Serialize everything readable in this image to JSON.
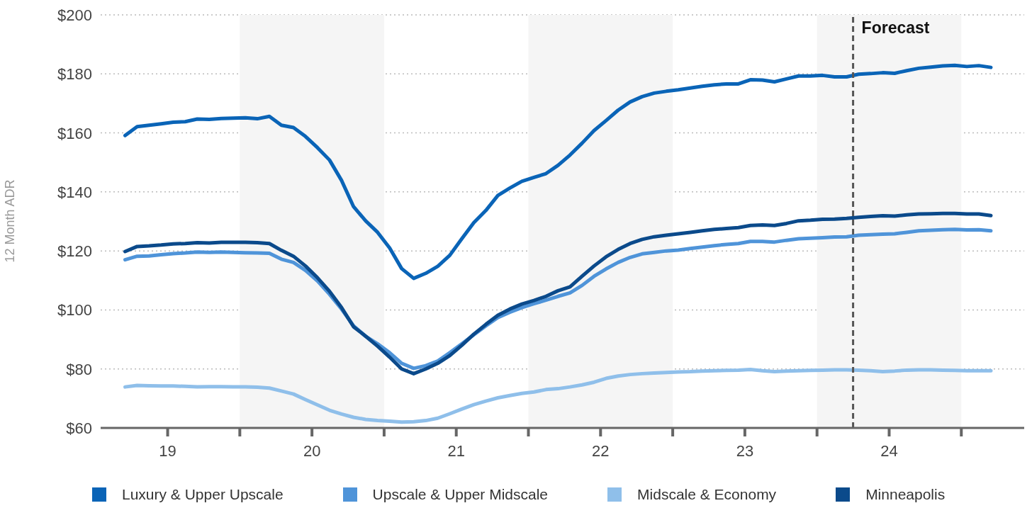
{
  "chart_data": {
    "type": "line",
    "ylabel": "12 Month ADR",
    "legend": "bottom",
    "grid": "y",
    "marker": "none",
    "x": [
      "2019-03-15",
      "2019-04-15",
      "2019-05-15",
      "2019-06-15",
      "2019-07-15",
      "2019-08-15",
      "2019-09-15",
      "2019-10-15",
      "2019-11-15",
      "2019-12-15",
      "2020-01-15",
      "2020-02-15",
      "2020-03-15",
      "2020-04-15",
      "2020-05-15",
      "2020-06-15",
      "2020-07-15",
      "2020-08-15",
      "2020-09-15",
      "2020-10-15",
      "2020-11-15",
      "2020-12-15",
      "2021-01-15",
      "2021-02-15",
      "2021-03-15",
      "2021-04-15",
      "2021-05-15",
      "2021-06-15",
      "2021-07-15",
      "2021-08-15",
      "2021-09-15",
      "2021-10-15",
      "2021-11-15",
      "2021-12-15",
      "2022-01-15",
      "2022-02-15",
      "2022-03-15",
      "2022-04-15",
      "2022-05-15",
      "2022-06-15",
      "2022-07-15",
      "2022-08-15",
      "2022-09-15",
      "2022-10-15",
      "2022-11-15",
      "2022-12-15",
      "2023-01-15",
      "2023-02-15",
      "2023-03-15",
      "2023-04-15",
      "2023-05-15",
      "2023-06-15",
      "2023-07-15",
      "2023-08-15",
      "2023-09-15",
      "2023-10-15",
      "2023-11-15",
      "2023-12-15",
      "2024-01-15",
      "2024-02-15",
      "2024-03-15",
      "2024-04-15",
      "2024-05-15",
      "2024-06-15",
      "2024-07-15",
      "2024-08-15",
      "2024-09-15",
      "2024-10-15",
      "2024-11-15",
      "2024-12-15",
      "2025-01-15",
      "2025-02-15",
      "2025-03-15"
    ],
    "xlim": [
      "2019-01-14",
      "2025-06-08"
    ],
    "xticks": [
      {
        "value": "2019-07-01",
        "label": "19"
      },
      {
        "value": "2020-01-01",
        "label": null
      },
      {
        "value": "2020-07-01",
        "label": "20"
      },
      {
        "value": "2021-01-01",
        "label": null
      },
      {
        "value": "2021-07-01",
        "label": "21"
      },
      {
        "value": "2022-01-01",
        "label": null
      },
      {
        "value": "2022-07-01",
        "label": "22"
      },
      {
        "value": "2023-01-01",
        "label": null
      },
      {
        "value": "2023-07-01",
        "label": "23"
      },
      {
        "value": "2024-01-01",
        "label": null
      },
      {
        "value": "2024-07-01",
        "label": "24"
      },
      {
        "value": "2025-01-01",
        "label": null
      }
    ],
    "ylim": [
      60,
      200
    ],
    "yticks": [
      {
        "value": 60,
        "label": "$60"
      },
      {
        "value": 80,
        "label": "$80"
      },
      {
        "value": 100,
        "label": "$100"
      },
      {
        "value": 120,
        "label": "$120"
      },
      {
        "value": 140,
        "label": "$140"
      },
      {
        "value": 160,
        "label": "$160"
      },
      {
        "value": 180,
        "label": "$180"
      },
      {
        "value": 200,
        "label": "$200"
      }
    ],
    "bands": [
      {
        "axis": "x",
        "from": "2020-01-01",
        "to": "2021-01-01",
        "label": null,
        "color": "#f5f5f5"
      },
      {
        "axis": "x",
        "from": "2022-01-01",
        "to": "2023-01-01",
        "label": null,
        "color": "#f5f5f5"
      },
      {
        "axis": "x",
        "from": "2024-01-01",
        "to": "2025-01-01",
        "label": null,
        "color": "#f5f5f5"
      }
    ],
    "ref_lines": [
      {
        "axis": "x",
        "value": "2024-04-01",
        "label": "Forecast",
        "color": "#555555",
        "line_style": "dashed"
      }
    ],
    "series": [
      {
        "name": "Luxury & Upper Upscale",
        "color": "#0a64b7",
        "values": [
          159.1,
          162.1,
          162.6,
          163.1,
          163.6,
          163.8,
          164.7,
          164.6,
          164.9,
          165,
          165.1,
          164.8,
          165.6,
          162.6,
          161.8,
          158.8,
          155,
          150.8,
          143.9,
          135,
          130.2,
          126.3,
          121,
          114,
          110.7,
          112.4,
          114.8,
          118.5,
          124.1,
          129.6,
          133.7,
          138.8,
          141.3,
          143.6,
          144.9,
          146.2,
          149,
          152.5,
          156.5,
          160.8,
          164.2,
          167.7,
          170.5,
          172.3,
          173.5,
          174.1,
          174.6,
          175.2,
          175.8,
          176.3,
          176.6,
          176.6,
          178,
          177.9,
          177.3,
          178.3,
          179.3,
          179.3,
          179.5,
          179,
          179,
          179.9,
          180.1,
          180.4,
          180.2,
          181.1,
          181.9,
          182.3,
          182.7,
          182.9,
          182.5,
          182.8,
          182.2
        ]
      },
      {
        "name": "Upscale & Upper Midscale",
        "color": "#4f94d9",
        "values": [
          117,
          118.2,
          118.3,
          118.7,
          119.1,
          119.3,
          119.6,
          119.5,
          119.6,
          119.5,
          119.4,
          119.3,
          119.2,
          117.2,
          116.1,
          113.4,
          109.8,
          105.3,
          100.3,
          94.6,
          91.1,
          88.5,
          85.5,
          81.9,
          80.2,
          81.1,
          82.7,
          85.5,
          88.5,
          91.6,
          94.6,
          97.4,
          99.2,
          100.8,
          102.1,
          103.3,
          104.6,
          105.8,
          108.3,
          111.4,
          113.9,
          116.1,
          117.8,
          119,
          119.5,
          120,
          120.3,
          120.8,
          121.3,
          121.8,
          122.2,
          122.5,
          123.2,
          123.2,
          123,
          123.6,
          124.1,
          124.3,
          124.5,
          124.7,
          124.8,
          125.3,
          125.5,
          125.7,
          125.8,
          126.3,
          126.8,
          127,
          127.2,
          127.3,
          127.1,
          127.2,
          126.8
        ]
      },
      {
        "name": "Midscale & Economy",
        "color": "#8fbfea",
        "values": [
          73.9,
          74.4,
          74.3,
          74.2,
          74.2,
          74.1,
          73.9,
          74,
          74,
          73.9,
          73.9,
          73.8,
          73.5,
          72.5,
          71.5,
          69.6,
          67.8,
          66,
          64.7,
          63.6,
          62.9,
          62.5,
          62.3,
          62,
          62.1,
          62.5,
          63.3,
          64.8,
          66.4,
          67.9,
          69.1,
          70.2,
          71,
          71.7,
          72.2,
          73,
          73.3,
          73.9,
          74.6,
          75.5,
          76.8,
          77.6,
          78.1,
          78.4,
          78.6,
          78.8,
          79,
          79.1,
          79.3,
          79.4,
          79.5,
          79.6,
          79.8,
          79.4,
          79.1,
          79.3,
          79.4,
          79.5,
          79.6,
          79.7,
          79.7,
          79.6,
          79.4,
          79.1,
          79.3,
          79.6,
          79.7,
          79.7,
          79.6,
          79.5,
          79.4,
          79.4,
          79.4
        ]
      },
      {
        "name": "Minneapolis",
        "color": "#0b4a8b",
        "values": [
          119.8,
          121.5,
          121.7,
          122,
          122.4,
          122.5,
          122.8,
          122.7,
          122.9,
          122.9,
          122.9,
          122.8,
          122.5,
          120.2,
          118.2,
          114.9,
          110.9,
          106.3,
          100.8,
          94.3,
          91.1,
          87.7,
          84,
          80,
          78.4,
          80,
          81.9,
          84.5,
          88,
          91.8,
          95.1,
          98.2,
          100.3,
          102,
          103.2,
          104.6,
          106.5,
          107.8,
          111.4,
          114.9,
          118,
          120.5,
          122.5,
          123.9,
          124.8,
          125.3,
          125.8,
          126.3,
          126.8,
          127.3,
          127.6,
          127.9,
          128.6,
          128.8,
          128.6,
          129.3,
          130.2,
          130.4,
          130.7,
          130.8,
          131,
          131.4,
          131.7,
          131.9,
          131.8,
          132.2,
          132.5,
          132.6,
          132.7,
          132.7,
          132.5,
          132.5,
          132
        ]
      }
    ]
  }
}
